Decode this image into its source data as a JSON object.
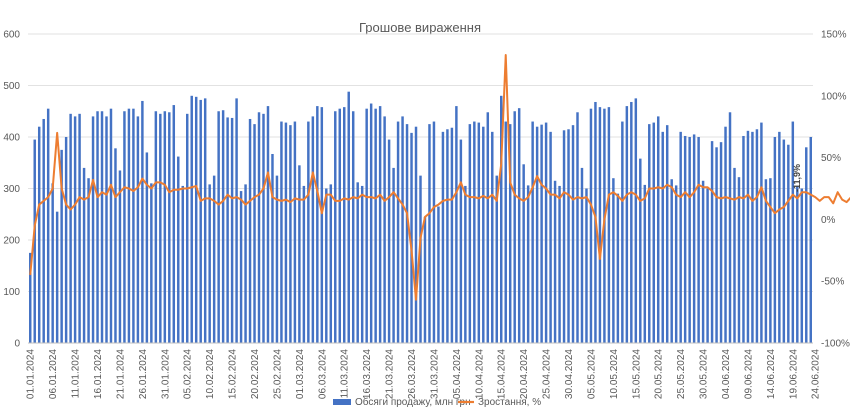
{
  "chart_data": {
    "type": "bar",
    "title": "Грошове вираження",
    "xlabel": "",
    "ylabel": "",
    "ylim": [
      0,
      600
    ],
    "y2lim": [
      -100,
      150
    ],
    "y_ticks": [
      "0",
      "100",
      "200",
      "300",
      "400",
      "500",
      "600"
    ],
    "y2_ticks": [
      "-100%",
      "-50%",
      "0%",
      "50%",
      "100%",
      "150%"
    ],
    "x_tick_labels": [
      "01.01.2024",
      "06.01.2024",
      "11.01.2024",
      "16.01.2024",
      "21.01.2024",
      "26.01.2024",
      "31.01.2024",
      "05.02.2024",
      "10.02.2024",
      "15.02.2024",
      "20.02.2024",
      "25.02.2024",
      "01.03.2024",
      "06.03.2024",
      "11.03.2024",
      "16.03.2024",
      "21.03.2024",
      "26.03.2024",
      "31.03.2024",
      "05.04.2024",
      "10.04.2024",
      "15.04.2024",
      "20.04.2024",
      "25.04.2024",
      "30.04.2024",
      "05.05.2024",
      "10.05.2024",
      "15.05.2024",
      "20.05.2024",
      "25.05.2024",
      "30.05.2024",
      "04.06.2024",
      "09.06.2024",
      "14.06.2024",
      "19.06.2024",
      "24.06.2024"
    ],
    "grid": true,
    "legend_position": "bottom",
    "annotation": "-11,9%",
    "colors": {
      "bars": "#4472C4",
      "line": "#ED7D31"
    },
    "series": [
      {
        "name": "Обсяги продажу, млн грн",
        "type": "bar",
        "axis": "left",
        "values": [
          175,
          395,
          420,
          435,
          455,
          310,
          255,
          375,
          400,
          445,
          440,
          445,
          340,
          320,
          440,
          450,
          450,
          440,
          455,
          378,
          335,
          450,
          455,
          455,
          440,
          470,
          370,
          310,
          450,
          445,
          450,
          448,
          462,
          362,
          305,
          445,
          480,
          478,
          472,
          475,
          308,
          325,
          450,
          452,
          438,
          437,
          475,
          295,
          308,
          435,
          425,
          448,
          445,
          460,
          367,
          325,
          430,
          428,
          423,
          430,
          345,
          305,
          430,
          440,
          460,
          458,
          300,
          308,
          450,
          455,
          458,
          488,
          450,
          312,
          305,
          455,
          465,
          455,
          460,
          440,
          395,
          340,
          430,
          440,
          425,
          408,
          420,
          325,
          245,
          425,
          430,
          265,
          410,
          415,
          418,
          460,
          395,
          305,
          425,
          430,
          428,
          420,
          448,
          410,
          325,
          480,
          430,
          425,
          450,
          456,
          347,
          306,
          430,
          420,
          424,
          428,
          410,
          315,
          305,
          413,
          415,
          423,
          448,
          340,
          300,
          455,
          468,
          458,
          455,
          458,
          320,
          290,
          430,
          460,
          468,
          475,
          358,
          307,
          425,
          428,
          440,
          410,
          423,
          318,
          306,
          410,
          402,
          400,
          405,
          400,
          315,
          300,
          392,
          380,
          390,
          420,
          448,
          340,
          322,
          402,
          412,
          410,
          415,
          428,
          318,
          320,
          400,
          410,
          395,
          385,
          430,
          305,
          300,
          380,
          400
        ]
      },
      {
        "name": "Зростання, %",
        "type": "line",
        "axis": "right",
        "values": [
          -45,
          -5,
          12,
          15,
          18,
          25,
          70,
          25,
          12,
          8,
          12,
          18,
          16,
          18,
          32,
          18,
          22,
          20,
          28,
          18,
          22,
          26,
          25,
          23,
          26,
          33,
          28,
          25,
          30,
          30,
          28,
          22,
          24,
          24,
          25,
          25,
          26,
          27,
          15,
          17,
          17,
          15,
          12,
          15,
          20,
          17,
          18,
          16,
          12,
          15,
          18,
          20,
          25,
          38,
          18,
          16,
          15,
          16,
          14,
          17,
          16,
          16,
          20,
          38,
          23,
          5,
          20,
          20,
          15,
          15,
          17,
          16,
          18,
          17,
          20,
          18,
          18,
          17,
          20,
          15,
          18,
          22,
          17,
          12,
          5,
          -25,
          -65,
          -15,
          2,
          5,
          10,
          12,
          15,
          16,
          16,
          22,
          30,
          20,
          18,
          18,
          17,
          19,
          17,
          20,
          15,
          45,
          133,
          30,
          20,
          17,
          15,
          18,
          26,
          35,
          28,
          25,
          20,
          20,
          17,
          22,
          20,
          16,
          18,
          17,
          18,
          12,
          2,
          -32,
          0,
          20,
          22,
          19,
          15,
          20,
          22,
          20,
          15,
          17,
          25,
          25,
          26,
          25,
          28,
          26,
          20,
          18,
          22,
          18,
          22,
          28,
          26,
          26,
          23,
          18,
          17,
          18,
          17,
          16,
          18,
          17,
          20,
          15,
          18,
          26,
          15,
          10,
          5,
          8,
          10,
          15,
          20,
          17,
          22,
          22,
          20,
          18,
          15,
          18,
          18,
          13,
          22,
          16,
          14,
          18
        ]
      }
    ]
  }
}
